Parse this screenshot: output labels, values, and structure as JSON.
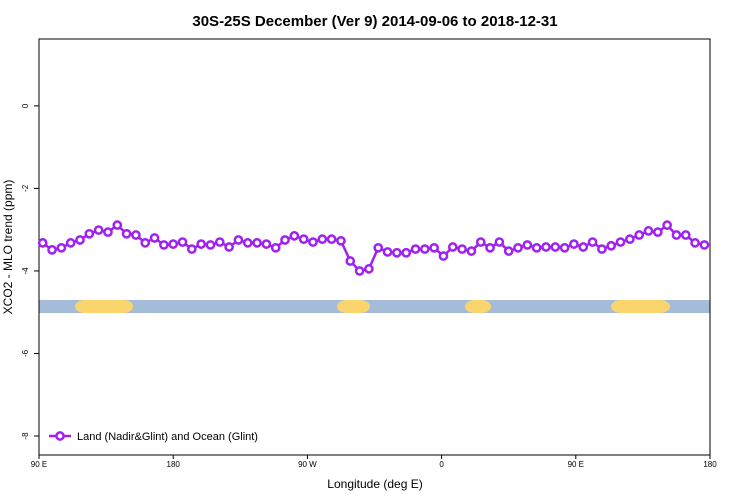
{
  "chart_data": {
    "type": "line",
    "title": "30S-25S December (Ver 9)   2014-09-06 to 2018-12-31",
    "x_label": "Longitude (deg E)",
    "y_label": "XCO2 - MLO trend (ppm)",
    "xlim": [
      90,
      540
    ],
    "xticks": [
      {
        "value": 90,
        "label": "90 E"
      },
      {
        "value": 180,
        "label": "180"
      },
      {
        "value": 270,
        "label": "90 W"
      },
      {
        "value": 360,
        "label": "0"
      },
      {
        "value": 450,
        "label": "90 E"
      },
      {
        "value": 540,
        "label": "180"
      }
    ],
    "ylim": [
      -8.46,
      1.62
    ],
    "yticks": [
      0,
      -2,
      -4,
      -6,
      -8
    ],
    "x": [
      92.5,
      98.75,
      105,
      111.25,
      117.5,
      123.75,
      130,
      136.25,
      142.5,
      148.75,
      155,
      161.25,
      167.5,
      173.75,
      180,
      186.25,
      192.5,
      198.75,
      205,
      211.25,
      217.5,
      223.75,
      230,
      236.25,
      242.5,
      248.75,
      255,
      261.25,
      267.5,
      273.75,
      280,
      286.25,
      292.5,
      298.75,
      305,
      311.25,
      317.5,
      323.75,
      330,
      336.25,
      342.5,
      348.75,
      355,
      361.25,
      367.5,
      373.75,
      380,
      386.25,
      392.5,
      398.75,
      405,
      411.25,
      417.5,
      423.75,
      430,
      436.25,
      442.5,
      448.75,
      455,
      461.25,
      467.5,
      473.75,
      480,
      486.25,
      492.5,
      498.75,
      505,
      511.25,
      517.5,
      523.75,
      530,
      536.25
    ],
    "series": [
      {
        "name": "Land (Nadir&Glint) and Ocean (Glint)",
        "color": "#a020f0",
        "values": [
          -3.32,
          -3.49,
          -3.44,
          -3.32,
          -3.25,
          -3.1,
          -3.01,
          -3.06,
          -2.89,
          -3.1,
          -3.13,
          -3.32,
          -3.2,
          -3.37,
          -3.35,
          -3.3,
          -3.47,
          -3.35,
          -3.37,
          -3.3,
          -3.42,
          -3.25,
          -3.32,
          -3.32,
          -3.35,
          -3.44,
          -3.25,
          -3.15,
          -3.23,
          -3.3,
          -3.23,
          -3.23,
          -3.27,
          -3.76,
          -4.0,
          -3.95,
          -3.44,
          -3.54,
          -3.56,
          -3.56,
          -3.47,
          -3.47,
          -3.44,
          -3.64,
          -3.42,
          -3.47,
          -3.52,
          -3.3,
          -3.44,
          -3.3,
          -3.52,
          -3.44,
          -3.37,
          -3.44,
          -3.42,
          -3.42,
          -3.44,
          -3.35,
          -3.42,
          -3.3,
          -3.47,
          -3.39,
          -3.3,
          -3.23,
          -3.13,
          -3.03,
          -3.06,
          -2.89,
          -3.13,
          -3.13,
          -3.32,
          -3.37
        ]
      }
    ],
    "ocean_color": "#a5bcd9",
    "land_color": "#fad56e",
    "land_spans": [
      [
        114.1,
        153.1
      ],
      [
        289.9,
        312
      ],
      [
        375.7,
        393.2
      ],
      [
        473.6,
        513.2
      ]
    ],
    "legend": "bottom-left"
  }
}
